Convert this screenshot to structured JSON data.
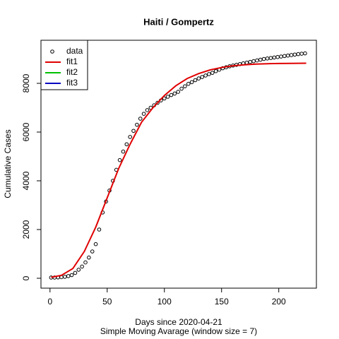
{
  "chart_data": {
    "type": "scatter",
    "title": "Haiti / Gompertz",
    "x_label": "Days since 2020-04-21",
    "subtitle": "Simple Moving Avarage (window size = 7)",
    "y_label": "Cumulative Cases",
    "xlim": [
      -7.9,
      232.9
    ],
    "ylim": [
      -406,
      9768
    ],
    "xticks": [
      0,
      50,
      100,
      150,
      200
    ],
    "yticks": [
      0,
      2000,
      4000,
      6000,
      8000
    ],
    "legend_position": "top-left",
    "series": [
      {
        "name": "data",
        "color": "#000000",
        "style": "points",
        "x": [
          1,
          4,
          7,
          10,
          13,
          16,
          19,
          22,
          25,
          28,
          31,
          34,
          37,
          40,
          43,
          46,
          49,
          52,
          55,
          58,
          61,
          64,
          67,
          70,
          73,
          76,
          79,
          82,
          85,
          88,
          91,
          94,
          97,
          100,
          103,
          106,
          109,
          112,
          115,
          118,
          121,
          124,
          127,
          130,
          133,
          136,
          139,
          142,
          145,
          148,
          151,
          154,
          157,
          160,
          163,
          166,
          169,
          172,
          175,
          178,
          181,
          184,
          187,
          190,
          193,
          196,
          199,
          202,
          205,
          208,
          211,
          214,
          217,
          220,
          223
        ],
        "values": [
          30,
          30,
          35,
          45,
          60,
          90,
          130,
          220,
          350,
          480,
          650,
          850,
          1100,
          1400,
          2000,
          2700,
          3150,
          3600,
          4000,
          4450,
          4850,
          5200,
          5500,
          5800,
          6050,
          6300,
          6550,
          6750,
          6900,
          7000,
          7100,
          7200,
          7300,
          7380,
          7450,
          7520,
          7580,
          7650,
          7780,
          7880,
          7980,
          8050,
          8130,
          8200,
          8260,
          8320,
          8380,
          8430,
          8500,
          8560,
          8620,
          8660,
          8700,
          8730,
          8760,
          8790,
          8820,
          8850,
          8880,
          8910,
          8940,
          8970,
          9000,
          9020,
          9040,
          9060,
          9080,
          9100,
          9120,
          9140,
          9160,
          9180,
          9200,
          9215,
          9230
        ]
      },
      {
        "name": "fit1",
        "color": "#e00000",
        "style": "line",
        "x": [
          1,
          10,
          20,
          30,
          40,
          50,
          60,
          70,
          80,
          90,
          100,
          110,
          120,
          130,
          140,
          150,
          160,
          170,
          180,
          190,
          200,
          210,
          224
        ],
        "values": [
          40,
          120,
          400,
          1100,
          2100,
          3300,
          4500,
          5500,
          6400,
          7000,
          7500,
          7900,
          8200,
          8400,
          8550,
          8650,
          8720,
          8760,
          8790,
          8805,
          8815,
          8820,
          8825
        ]
      }
    ],
    "legend_only": [
      {
        "name": "fit2",
        "color": "#00c000"
      },
      {
        "name": "fit3",
        "color": "#0000c0"
      }
    ]
  }
}
